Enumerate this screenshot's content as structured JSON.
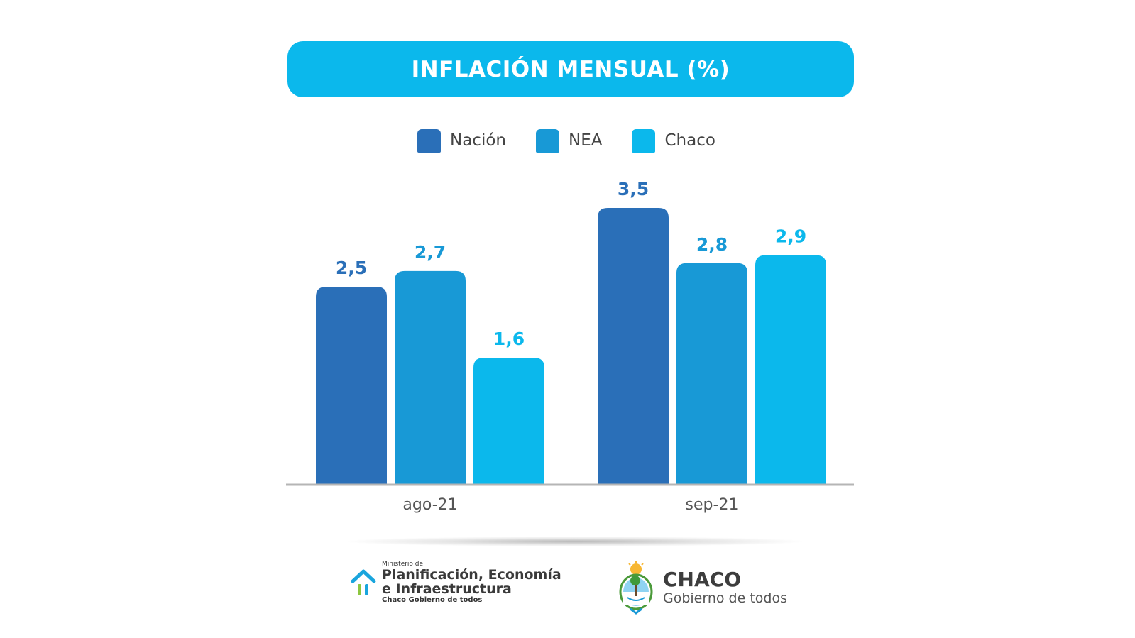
{
  "title": "INFLACIÓN MENSUAL (%)",
  "colors": {
    "nacion": "#2a6fb8",
    "nea": "#1899d6",
    "chaco": "#0bb8ec",
    "banner": "#0bb8ec"
  },
  "chart_data": {
    "type": "bar",
    "title": "INFLACIÓN MENSUAL (%)",
    "categories": [
      "ago-21",
      "sep-21"
    ],
    "series": [
      {
        "name": "Nación",
        "values": [
          2.5,
          3.5
        ],
        "labels": [
          "2,5",
          "3,5"
        ],
        "color": "#2a6fb8"
      },
      {
        "name": "NEA",
        "values": [
          2.7,
          2.8
        ],
        "labels": [
          "2,7",
          "2,8"
        ],
        "color": "#1899d6"
      },
      {
        "name": "Chaco",
        "values": [
          1.6,
          2.9
        ],
        "labels": [
          "1,6",
          "2,9"
        ],
        "color": "#0bb8ec"
      }
    ],
    "xlabel": "",
    "ylabel": "",
    "ylim": [
      0,
      3.5
    ],
    "grid": false,
    "legend": "top-center"
  },
  "footer": {
    "ministry_small": "Ministerio de",
    "ministry_line1": "Planificación, Economía",
    "ministry_line2": "e Infraestructura",
    "ministry_sub": "Chaco Gobierno de todos",
    "brand": "CHACO",
    "brand_sub": "Gobierno de todos"
  },
  "icons": [
    "house-logo-icon",
    "provincial-shield-icon"
  ]
}
